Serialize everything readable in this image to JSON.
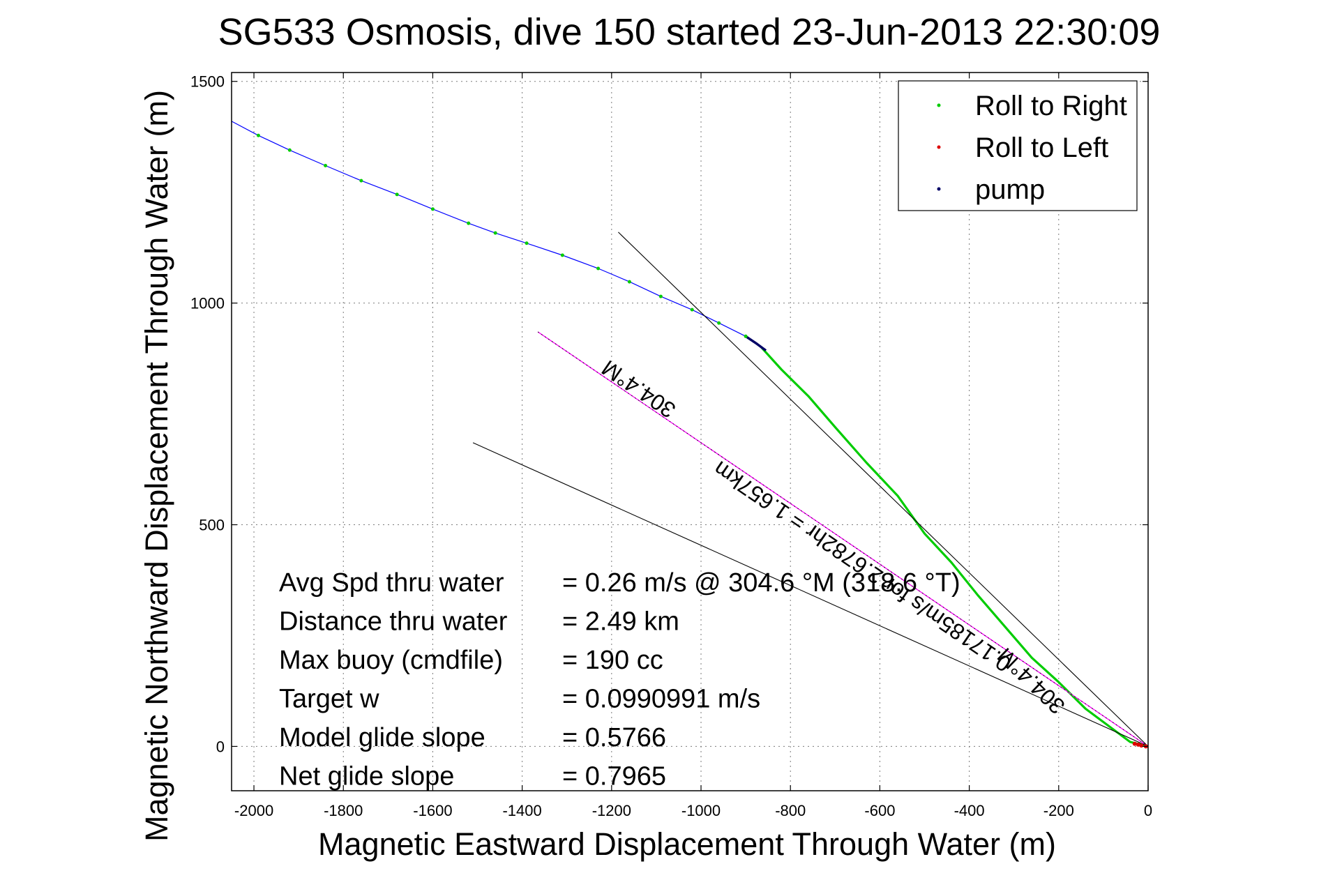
{
  "chart_data": {
    "type": "line",
    "title": "SG533 Osmosis, dive 150 started 23-Jun-2013 22:30:09",
    "xlabel": "Magnetic Eastward Displacement Through Water (m)",
    "ylabel": "Magnetic Northward Displacement Through Water (m)",
    "xlim": [
      -2050,
      0
    ],
    "ylim": [
      -100,
      1520
    ],
    "xticks": [
      -2000,
      -1800,
      -1600,
      -1400,
      -1200,
      -1000,
      -800,
      -600,
      -400,
      -200,
      0
    ],
    "yticks": [
      0,
      500,
      1000,
      1500
    ],
    "grid": true,
    "legend_position": "top-right",
    "legend": [
      {
        "label": "Roll to Right",
        "color": "#00cc00"
      },
      {
        "label": "Roll to Left",
        "color": "#dd0000"
      },
      {
        "label": "pump",
        "color": "#000066"
      }
    ],
    "series": [
      {
        "color": "#0000ff",
        "x": [
          -2050,
          -1990,
          -1920,
          -1840,
          -1760,
          -1680,
          -1600,
          -1520,
          -1460,
          -1390,
          -1310,
          -1230,
          -1160,
          -1090,
          -1020,
          -960,
          -900,
          -865
        ],
        "y": [
          1410,
          1378,
          1345,
          1310,
          1276,
          1245,
          1212,
          1180,
          1158,
          1135,
          1108,
          1078,
          1048,
          1015,
          985,
          955,
          925,
          900
        ]
      },
      {
        "color": "#00cc00",
        "x": [
          -865,
          -820,
          -760,
          -700,
          -630,
          -560,
          -500,
          -440,
          -380,
          -320,
          -260,
          -200,
          -140,
          -80,
          -40,
          0
        ],
        "y": [
          900,
          850,
          790,
          720,
          640,
          565,
          480,
          415,
          340,
          270,
          200,
          145,
          85,
          40,
          10,
          0
        ]
      },
      {
        "color": "#000066",
        "x": [
          -900,
          -875,
          -855
        ],
        "y": [
          925,
          908,
          893
        ]
      },
      {
        "color": "#ff00ff",
        "x": [
          -1365,
          0
        ],
        "y": [
          935,
          0
        ]
      },
      {
        "color": "#000000",
        "x": [
          -1185,
          0
        ],
        "y": [
          1160,
          0
        ]
      },
      {
        "color": "#000000",
        "x": [
          -1510,
          0
        ],
        "y": [
          685,
          0
        ]
      }
    ],
    "annotations": [
      {
        "text": "304.4°M",
        "x": -1130,
        "y": 820,
        "angle": 214.4
      },
      {
        "text": "0.17185m/s for 2.6782hr = 1.657km",
        "x": -630,
        "y": 420,
        "angle": 214.4
      },
      {
        "text": "304.4°M",
        "x": -250,
        "y": 160,
        "angle": 224
      }
    ],
    "stats": [
      {
        "label": "Avg Spd thru water",
        "value": "=  0.26 m/s @ 304.6 °M (318.6 °T)"
      },
      {
        "label": "Distance thru water",
        "value": "=  2.49 km"
      },
      {
        "label": "Max buoy (cmdfile)",
        "value": "= 190 cc"
      },
      {
        "label": "Target w",
        "value": "= 0.0990991 m/s"
      },
      {
        "label": "Model glide slope",
        "value": "= 0.5766"
      },
      {
        "label": "Net glide slope",
        "value": "= 0.7965"
      }
    ]
  }
}
